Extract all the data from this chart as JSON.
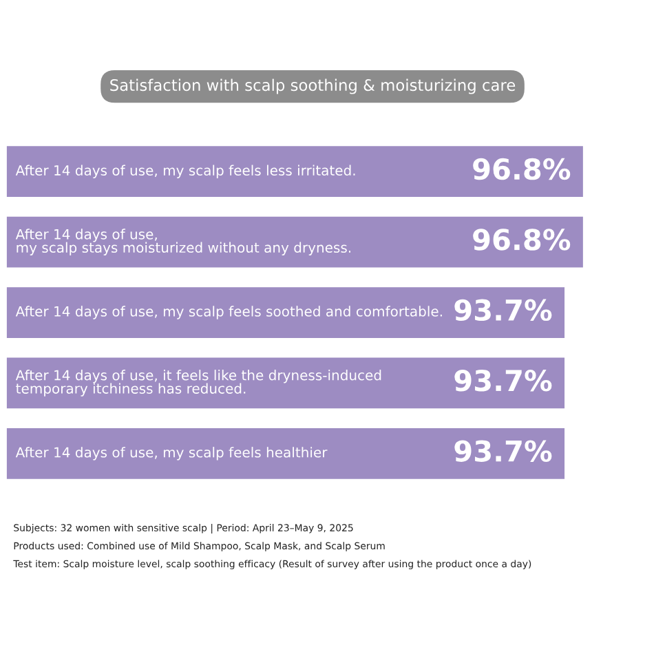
{
  "chart_data": {
    "type": "bar",
    "orientation": "horizontal",
    "title": "Satisfaction with scalp soothing & moisturizing care",
    "categories": [
      "After 14 days of use, my scalp feels less irritated.",
      "After 14 days of use,\nmy scalp stays moisturized without any dryness.",
      "After 14 days of use, my scalp feels soothed and comfortable.",
      "After 14 days of use, it feels like the dryness-induced\ntemporary itchiness has reduced.",
      "After 14 days of use, my scalp feels healthier"
    ],
    "values": [
      96.8,
      96.8,
      93.7,
      93.7,
      93.7
    ],
    "value_labels": [
      "96.8%",
      "96.8%",
      "93.7%",
      "93.7%",
      "93.7%"
    ],
    "color": "#9d8cc2",
    "annotations": [
      "Subjects: 32 women with sensitive scalp | Period: April 23–May 9, 2025",
      "Products used: Combined use of Mild Shampoo, Scalp Mask, and Scalp Serum",
      "Test item: Scalp moisture level, scalp soothing efficacy (Result of survey after using the product once a day)"
    ]
  }
}
